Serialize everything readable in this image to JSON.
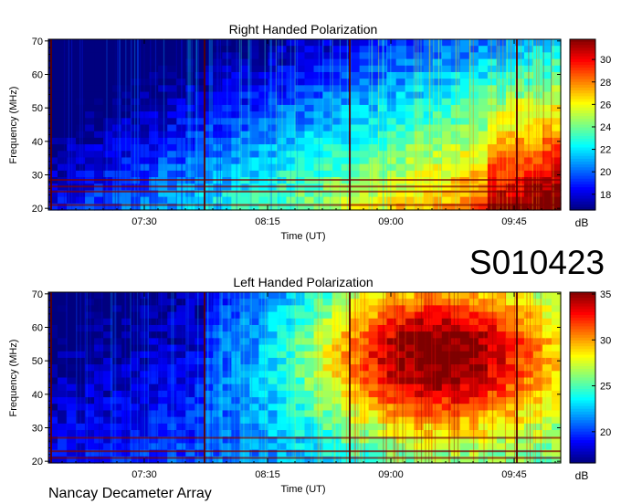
{
  "panels": [
    {
      "title": "Right Handed Polarization",
      "ylabel": "Frequency (MHz)",
      "xlabel": "Time (UT)",
      "colorbar_label": "dB"
    },
    {
      "title": "Left Handed Polarization",
      "ylabel": "Frequency (MHz)",
      "xlabel": "Time (UT)",
      "colorbar_label": "dB"
    }
  ],
  "observation_id": "S010423",
  "footer": "Nancay Decameter Array",
  "colors": {
    "colormap": [
      "#00007f",
      "#0000ff",
      "#007fff",
      "#00ffff",
      "#7fff7f",
      "#ffff00",
      "#ff7f00",
      "#ff0000",
      "#7f0000"
    ]
  },
  "chart_data": [
    {
      "type": "heatmap",
      "title": "Right Handed Polarization",
      "xlabel": "Time (UT)",
      "ylabel": "Frequency (MHz)",
      "x_ticks": [
        "07:30",
        "08:15",
        "09:00",
        "09:45"
      ],
      "x_tick_minutes": [
        450,
        495,
        540,
        585
      ],
      "xlim_minutes": [
        415,
        602
      ],
      "ylim": [
        19.5,
        70.5
      ],
      "y_ticks": [
        20,
        30,
        40,
        50,
        60,
        70
      ],
      "colorbar": {
        "label": "dB",
        "range": [
          16.6,
          31.8
        ],
        "ticks": [
          18,
          20,
          22,
          24,
          26,
          28,
          30
        ]
      },
      "intensity_trend": "low (~17-19 dB) at early times and high frequencies, rising to ~28-31 dB after 09:00 below 40 MHz",
      "vertical_lines_minutes": [
        416,
        472,
        525,
        586
      ],
      "horizontal_bands_mhz": [
        21,
        25,
        26.5,
        28.5
      ]
    },
    {
      "type": "heatmap",
      "title": "Left Handed Polarization",
      "xlabel": "Time (UT)",
      "ylabel": "Frequency (MHz)",
      "x_ticks": [
        "07:30",
        "08:15",
        "09:00",
        "09:45"
      ],
      "x_tick_minutes": [
        450,
        495,
        540,
        585
      ],
      "xlim_minutes": [
        415,
        602
      ],
      "ylim": [
        19.5,
        70.5
      ],
      "y_ticks": [
        20,
        30,
        40,
        50,
        60,
        70
      ],
      "colorbar": {
        "label": "dB",
        "range": [
          16.6,
          35.2
        ],
        "ticks": [
          20,
          25,
          30,
          35
        ]
      },
      "intensity_trend": "low (~18-20 dB) before 08:00, strong emission ~33-35 dB from 08:40 to 09:45 between 30 and 70 MHz",
      "vertical_lines_minutes": [
        416,
        472,
        525,
        586
      ],
      "horizontal_bands_mhz": [
        21,
        23,
        27
      ]
    }
  ]
}
